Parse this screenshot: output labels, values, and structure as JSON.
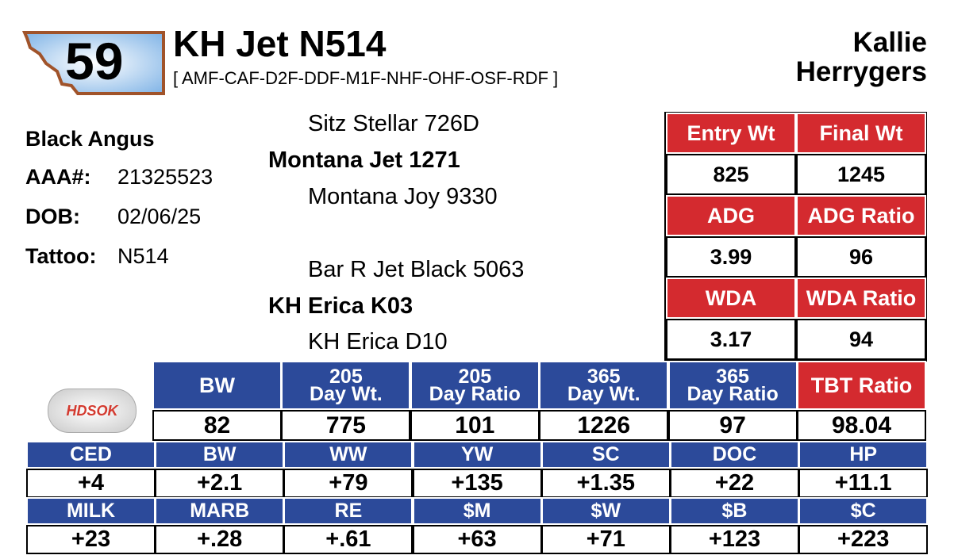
{
  "lot_number": "59",
  "header": {
    "title": "KH Jet N514",
    "subtitle": "[ AMF-CAF-D2F-DDF-M1F-NHF-OHF-OSF-RDF ]",
    "owner": [
      "Kallie",
      "Herrygers"
    ]
  },
  "info": {
    "breed": "Black Angus",
    "rows": [
      [
        "AAA#:",
        "21325523"
      ],
      [
        "DOB:",
        "02/06/25"
      ],
      [
        "Tattoo:",
        "N514"
      ]
    ]
  },
  "pedigree": {
    "sire_sire": "Sitz Stellar 726D",
    "sire": "Montana Jet 1271",
    "sire_dam": "Montana Joy 9330",
    "dam_sire": "Bar R Jet Black 5063",
    "dam": "KH Erica K03",
    "dam_dam": "KH Erica D10"
  },
  "test_table": {
    "rows": [
      [
        "Entry Wt",
        "Final Wt"
      ],
      [
        "825",
        "1245"
      ],
      [
        "ADG",
        "ADG Ratio"
      ],
      [
        "3.99",
        "96"
      ],
      [
        "WDA",
        "WDA Ratio"
      ],
      [
        "3.17",
        "94"
      ]
    ]
  },
  "logo": "HDSOK",
  "performance": {
    "headers": [
      [
        "BW"
      ],
      [
        "205",
        "Day Wt."
      ],
      [
        "205",
        "Day Ratio"
      ],
      [
        "365",
        "Day Wt."
      ],
      [
        "365",
        "Day Ratio"
      ],
      [
        "TBT Ratio"
      ]
    ],
    "values": [
      "82",
      "775",
      "101",
      "1226",
      "97",
      "98.04"
    ]
  },
  "epds": {
    "rows": [
      {
        "headers": [
          "CED",
          "BW",
          "WW",
          "YW",
          "SC",
          "DOC",
          "HP"
        ],
        "values": [
          "+4",
          "+2.1",
          "+79",
          "+135",
          "+1.35",
          "+22",
          "+11.1"
        ]
      },
      {
        "headers": [
          "MILK",
          "MARB",
          "RE",
          "$M",
          "$W",
          "$B",
          "$C"
        ],
        "values": [
          "+23",
          "+.28",
          "+.61",
          "+63",
          "+71",
          "+123",
          "+223"
        ]
      }
    ]
  }
}
